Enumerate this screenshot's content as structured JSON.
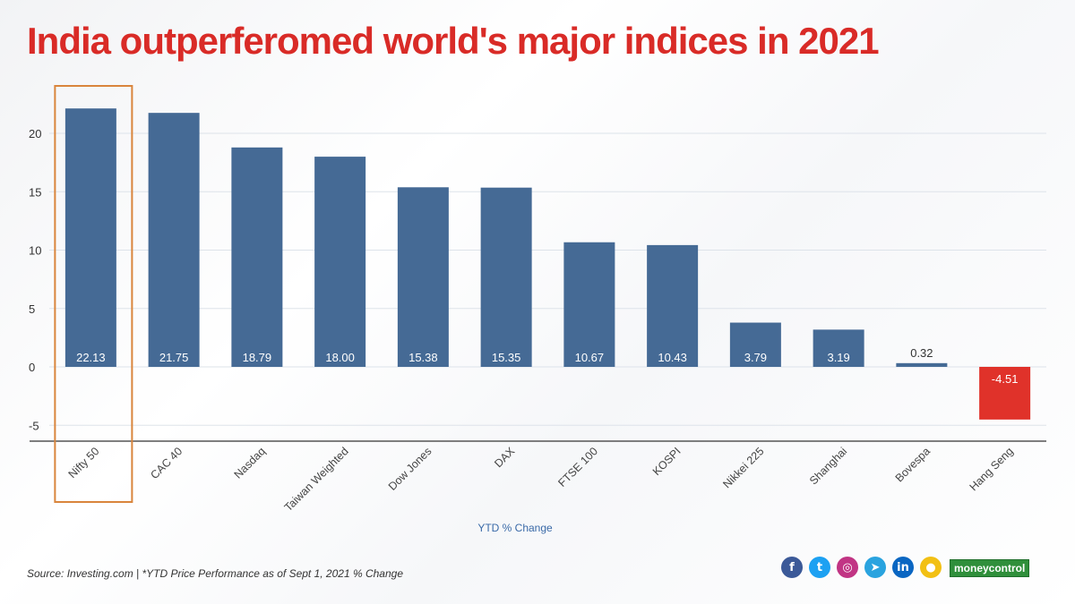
{
  "title": "India outperferomed world's major indices in 2021",
  "chart_data": {
    "type": "bar",
    "title": "India outperferomed world's major indices in 2021",
    "categories": [
      "Nifty 50",
      "CAC 40",
      "Nasdaq",
      "Taiwan Weighted",
      "Dow Jones",
      "DAX",
      "FTSE 100",
      "KOSPI",
      "Nikkei 225",
      "Shanghai",
      "Bovespa",
      "Hang Seng"
    ],
    "values": [
      22.13,
      21.75,
      18.79,
      18.0,
      15.38,
      15.35,
      10.67,
      10.43,
      3.79,
      3.19,
      0.32,
      -4.51
    ],
    "value_labels": [
      "22.13",
      "21.75",
      "18.79",
      "18.00",
      "15.38",
      "15.35",
      "10.67",
      "10.43",
      "3.79",
      "3.19",
      "0.32",
      "-4.51"
    ],
    "highlight_category": "Nifty 50",
    "xlabel": "YTD % Change",
    "ylabel": "",
    "yticks": [
      "-5",
      "0",
      "5",
      "10",
      "15",
      "20"
    ],
    "ytick_values": [
      -5,
      0,
      5,
      10,
      15,
      20
    ],
    "ylim": [
      -6.5,
      24
    ],
    "colors": {
      "positive": "#456a95",
      "negative": "#e0322a",
      "highlight": "#d9853c",
      "grid": "#dde3ea"
    }
  },
  "footer": {
    "source": "Source:  Investing.com | *YTD Price Performance as of Sept 1, 2021 % Change",
    "brand": "moneycontrol"
  },
  "social": [
    {
      "name": "facebook-icon",
      "glyph": "f",
      "color": "#3b5998"
    },
    {
      "name": "twitter-icon",
      "glyph": "t",
      "color": "#1da1f2"
    },
    {
      "name": "instagram-icon",
      "glyph": "◎",
      "color": "#c13584"
    },
    {
      "name": "telegram-icon",
      "glyph": "➤",
      "color": "#2aa3df"
    },
    {
      "name": "linkedin-icon",
      "glyph": "in",
      "color": "#0a66c2"
    },
    {
      "name": "koo-icon",
      "glyph": "●",
      "color": "#f2c014"
    }
  ]
}
